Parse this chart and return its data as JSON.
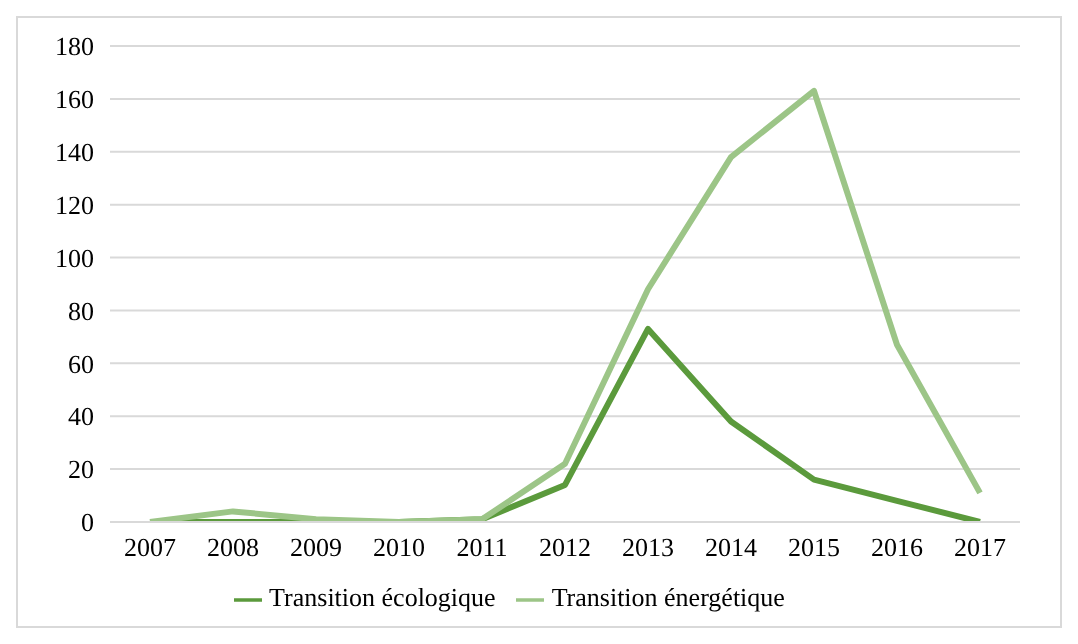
{
  "chart_data": {
    "type": "line",
    "categories": [
      "2007",
      "2008",
      "2009",
      "2010",
      "2011",
      "2012",
      "2013",
      "2014",
      "2015",
      "2016",
      "2017"
    ],
    "series": [
      {
        "name": "Transition écologique",
        "color": "#5b9a3c",
        "values": [
          0,
          0,
          0,
          0,
          1,
          14,
          73,
          38,
          16,
          8,
          0
        ]
      },
      {
        "name": "Transition énergétique",
        "color": "#9cc587",
        "values": [
          0,
          4,
          1,
          0,
          1,
          22,
          88,
          138,
          163,
          67,
          11
        ]
      }
    ],
    "ylim": [
      0,
      180
    ],
    "yticks": [
      0,
      20,
      40,
      60,
      80,
      100,
      120,
      140,
      160,
      180
    ],
    "grid": "y",
    "legend": "bottom",
    "marker": "none",
    "line_style": "solid"
  }
}
